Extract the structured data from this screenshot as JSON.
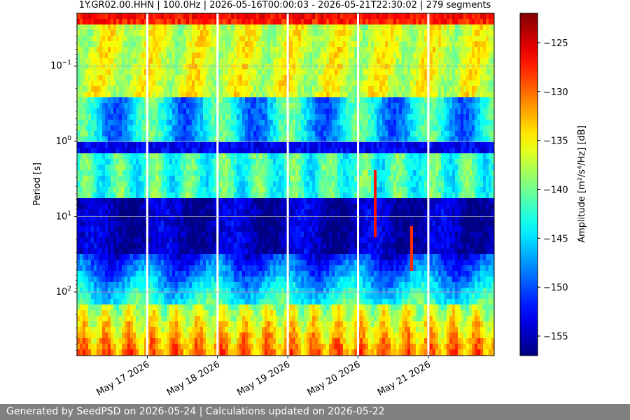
{
  "chart_data": {
    "type": "heatmap",
    "title": "1Y.GR02.00.HHN | 100.0Hz | 2026-05-16T00:00:03 - 2026-05-21T22:30:02 | 279 segments",
    "ylabel": "Period [s]",
    "y_scale": "log",
    "y_inverted": true,
    "y_range": [
      0.02,
      700
    ],
    "y_ticks": [
      {
        "value": 0.1,
        "base": "10",
        "exp": "−1"
      },
      {
        "value": 1,
        "base": "10",
        "exp": "0"
      },
      {
        "value": 10,
        "base": "10",
        "exp": "1"
      },
      {
        "value": 100,
        "base": "10",
        "exp": "2"
      }
    ],
    "x_range": [
      "2026-05-16T00:00:03",
      "2026-05-21T22:30:02"
    ],
    "x_ticks": [
      {
        "date": "2026-05-17",
        "label": "May 17 2026"
      },
      {
        "date": "2026-05-18",
        "label": "May 18 2026"
      },
      {
        "date": "2026-05-19",
        "label": "May 19 2026"
      },
      {
        "date": "2026-05-20",
        "label": "May 20 2026"
      },
      {
        "date": "2026-05-21",
        "label": "May 21 2026"
      }
    ],
    "colorbar": {
      "label": "Amplitude [m²/s⁴/Hz] [dB]",
      "colormap": "jet",
      "range": [
        -157,
        -122
      ],
      "ticks": [
        -125,
        -130,
        -135,
        -140,
        -145,
        -150,
        -155
      ]
    },
    "data_gaps": [
      "2026-05-17",
      "2026-05-18",
      "2026-05-19",
      "2026-05-20",
      "2026-05-21"
    ],
    "grid": "y-major"
  },
  "footer": {
    "text": "Generated by SeedPSD on 2026-05-24 | Calculations updated on 2026-05-22"
  }
}
